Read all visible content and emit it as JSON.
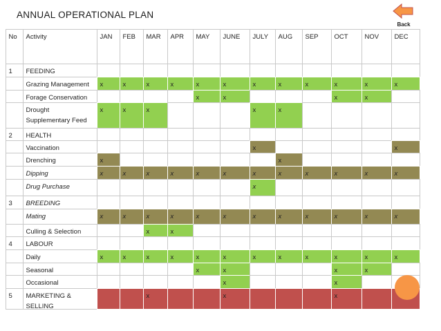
{
  "title": "ANNUAL OPERATIONAL PLAN",
  "back": "Back",
  "table": {
    "header": [
      "No",
      "Activity",
      "JAN",
      "FEB",
      "MAR",
      "APR",
      "MAY",
      "JUNE",
      "JULY",
      "AUG",
      "SEP",
      "OCT",
      "NOV",
      "DEC"
    ],
    "rows": [
      {
        "no": "1",
        "activity": "FEEDING",
        "style": "normal",
        "cells": [
          null,
          null,
          null,
          null,
          null,
          null,
          null,
          null,
          null,
          null,
          null,
          null
        ],
        "fills": [
          null,
          null,
          null,
          null,
          null,
          null,
          null,
          null,
          null,
          null,
          null,
          null
        ]
      },
      {
        "no": null,
        "activity": "Grazing Management",
        "style": "normal",
        "cells": [
          "x",
          "x",
          "x",
          "x",
          "x",
          "x",
          "x",
          "x",
          "x",
          "x",
          "x",
          "x"
        ],
        "fills": [
          "#92d050",
          "#92d050",
          "#92d050",
          "#92d050",
          "#92d050",
          "#92d050",
          "#92d050",
          "#92d050",
          "#92d050",
          "#92d050",
          "#92d050",
          "#92d050"
        ]
      },
      {
        "no": null,
        "activity": "Forage Conservation",
        "style": "normal",
        "cells": [
          null,
          null,
          null,
          null,
          "x",
          "x",
          null,
          null,
          null,
          "x",
          "x",
          null
        ],
        "fills": [
          null,
          null,
          null,
          null,
          "#92d050",
          "#92d050",
          null,
          null,
          null,
          "#92d050",
          "#92d050",
          null
        ]
      },
      {
        "no": null,
        "activity": "Drought\nSupplementary Feed",
        "style": "normal",
        "cells": [
          "x",
          "x",
          "x",
          null,
          null,
          null,
          "x",
          "x",
          null,
          null,
          null,
          null
        ],
        "fills": [
          "#92d050",
          "#92d050",
          "#92d050",
          null,
          null,
          null,
          "#92d050",
          "#92d050",
          null,
          null,
          null,
          null
        ]
      },
      {
        "no": "2",
        "activity": "HEALTH",
        "style": "normal",
        "cells": [
          null,
          null,
          null,
          null,
          null,
          null,
          null,
          null,
          null,
          null,
          null,
          null
        ],
        "fills": [
          null,
          null,
          null,
          null,
          null,
          null,
          null,
          null,
          null,
          null,
          null,
          null
        ]
      },
      {
        "no": null,
        "activity": "Vaccination",
        "style": "normal",
        "cells": [
          null,
          null,
          null,
          null,
          null,
          null,
          "x",
          null,
          null,
          null,
          null,
          "x"
        ],
        "fills": [
          null,
          null,
          null,
          null,
          null,
          null,
          "#938953",
          null,
          null,
          null,
          null,
          "#938953"
        ]
      },
      {
        "no": null,
        "activity": "Drenching",
        "style": "normal",
        "cells": [
          "x",
          null,
          null,
          null,
          null,
          null,
          null,
          "x",
          null,
          null,
          null,
          null
        ],
        "fills": [
          "#938953",
          null,
          null,
          null,
          null,
          null,
          null,
          "#938953",
          null,
          null,
          null,
          null
        ]
      },
      {
        "no": null,
        "activity": "Dipping",
        "style": "italic",
        "cells": [
          "x",
          "x",
          "x",
          "x",
          "x",
          "x",
          "x",
          "x",
          "x",
          "x",
          "x",
          "x"
        ],
        "fills": [
          "#938953",
          "#938953",
          "#938953",
          "#938953",
          "#938953",
          "#938953",
          "#938953",
          "#938953",
          "#938953",
          "#938953",
          "#938953",
          "#938953"
        ]
      },
      {
        "no": null,
        "activity": "Drug Purchase",
        "style": "italic",
        "cells": [
          null,
          null,
          null,
          null,
          null,
          null,
          "x",
          null,
          null,
          null,
          null,
          null
        ],
        "fills": [
          null,
          null,
          null,
          null,
          null,
          null,
          "#92d050",
          null,
          null,
          null,
          null,
          null
        ]
      },
      {
        "no": "3",
        "activity": "BREEDING",
        "style": "italic",
        "cells": [
          null,
          null,
          null,
          null,
          null,
          null,
          null,
          null,
          null,
          null,
          null,
          null
        ],
        "fills": [
          null,
          null,
          null,
          null,
          null,
          null,
          null,
          null,
          null,
          null,
          null,
          null
        ]
      },
      {
        "no": null,
        "activity": "Mating",
        "style": "italic",
        "cells": [
          "x",
          "x",
          "x",
          "x",
          "x",
          "x",
          "x",
          "x",
          "x",
          "x",
          "x",
          "x"
        ],
        "fills": [
          "#938953",
          "#938953",
          "#938953",
          "#938953",
          "#938953",
          "#938953",
          "#938953",
          "#938953",
          "#938953",
          "#938953",
          "#938953",
          "#938953"
        ]
      },
      {
        "no": null,
        "activity": "Culling & Selection",
        "style": "normal",
        "cells": [
          null,
          null,
          "x",
          "x",
          null,
          null,
          null,
          null,
          null,
          null,
          null,
          null
        ],
        "fills": [
          null,
          null,
          "#92d050",
          "#92d050",
          null,
          null,
          null,
          null,
          null,
          null,
          null,
          null
        ]
      },
      {
        "no": "4",
        "activity": "LABOUR",
        "style": "normal",
        "cells": [
          null,
          null,
          null,
          null,
          null,
          null,
          null,
          null,
          null,
          null,
          null,
          null
        ],
        "fills": [
          null,
          null,
          null,
          null,
          null,
          null,
          null,
          null,
          null,
          null,
          null,
          null
        ]
      },
      {
        "no": null,
        "activity": "Daily",
        "style": "normal",
        "cells": [
          "x",
          "x",
          "x",
          "x",
          "x",
          "x",
          "x",
          "x",
          "x",
          "x",
          "x",
          "x"
        ],
        "fills": [
          "#92d050",
          "#92d050",
          "#92d050",
          "#92d050",
          "#92d050",
          "#92d050",
          "#92d050",
          "#92d050",
          "#92d050",
          "#92d050",
          "#92d050",
          "#92d050"
        ]
      },
      {
        "no": null,
        "activity": "Seasonal",
        "style": "normal",
        "cells": [
          null,
          null,
          null,
          null,
          "x",
          "x",
          null,
          null,
          null,
          "x",
          "x",
          null
        ],
        "fills": [
          null,
          null,
          null,
          null,
          "#92d050",
          "#92d050",
          null,
          null,
          null,
          "#92d050",
          "#92d050",
          null
        ]
      },
      {
        "no": null,
        "activity": "Occasional",
        "style": "normal",
        "cells": [
          null,
          null,
          null,
          null,
          null,
          "x",
          null,
          null,
          null,
          "x",
          null,
          null
        ],
        "fills": [
          null,
          null,
          null,
          null,
          null,
          "#92d050",
          null,
          null,
          null,
          "#92d050",
          null,
          null
        ]
      },
      {
        "no": "5",
        "activity": "MARKETING &\nSELLING",
        "style": "normal",
        "cells": [
          null,
          null,
          "x",
          null,
          null,
          "x",
          null,
          null,
          null,
          "x",
          null,
          null
        ],
        "fills": [
          "#c0504d",
          "#c0504d",
          "#c0504d",
          "#c0504d",
          "#c0504d",
          "#c0504d",
          "#c0504d",
          "#c0504d",
          "#c0504d",
          "#c0504d",
          "#c0504d",
          "#c0504d"
        ]
      }
    ]
  }
}
